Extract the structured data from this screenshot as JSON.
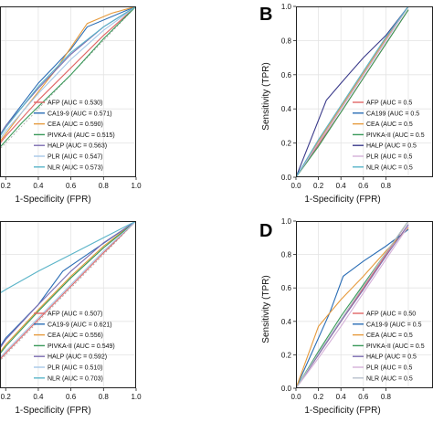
{
  "chart_data": [
    {
      "type": "line",
      "panel_label": "",
      "xlabel": "1-Specificity (FPR)",
      "ylabel": "",
      "xlim": [
        0.0,
        1.0
      ],
      "ylim": [
        0.0,
        1.0
      ],
      "x_ticks": [
        "0.2",
        "0.4",
        "0.6",
        "0.8",
        "1.0"
      ],
      "y_ticks": [],
      "grid": true,
      "legend_position": "bottom-right",
      "series": [
        {
          "name": "AFP (AUC = 0.530)",
          "color": "#e06666",
          "x": [
            0,
            0.2,
            0.4,
            0.6,
            0.8,
            1
          ],
          "y": [
            0,
            0.24,
            0.45,
            0.64,
            0.83,
            1
          ]
        },
        {
          "name": "CA19-9 (AUC = 0.571)",
          "color": "#2a6db5",
          "x": [
            0,
            0.2,
            0.4,
            0.6,
            0.7,
            1
          ],
          "y": [
            0,
            0.3,
            0.55,
            0.75,
            0.88,
            1
          ]
        },
        {
          "name": "CEA (AUC = 0.590)",
          "color": "#e69a3c",
          "x": [
            0,
            0.3,
            0.5,
            0.7,
            0.85,
            1
          ],
          "y": [
            0,
            0.38,
            0.62,
            0.9,
            0.96,
            1
          ]
        },
        {
          "name": "PIVKA-II (AUC = 0.515)",
          "color": "#3a9a5a",
          "x": [
            0,
            0.3,
            0.6,
            0.8,
            1
          ],
          "y": [
            0,
            0.32,
            0.6,
            0.81,
            1
          ]
        },
        {
          "name": "HALP (AUC = 0.563)",
          "color": "#7b6bb0",
          "x": [
            0,
            0.2,
            0.4,
            0.6,
            0.8,
            1
          ],
          "y": [
            0,
            0.3,
            0.52,
            0.72,
            0.88,
            1
          ]
        },
        {
          "name": "PLR (AUC = 0.547)",
          "color": "#a6c8e8",
          "x": [
            0,
            0.2,
            0.4,
            0.6,
            0.8,
            1
          ],
          "y": [
            0,
            0.27,
            0.49,
            0.69,
            0.86,
            1
          ]
        },
        {
          "name": "NLR (AUC = 0.573)",
          "color": "#5ab4c8",
          "x": [
            0,
            0.2,
            0.4,
            0.6,
            0.8,
            1
          ],
          "y": [
            0,
            0.29,
            0.53,
            0.73,
            0.88,
            1
          ]
        }
      ]
    },
    {
      "type": "line",
      "panel_label": "B",
      "xlabel": "1-Specificity (FPR)",
      "ylabel": "Sensitivity (TPR)",
      "xlim": [
        0.0,
        1.0
      ],
      "ylim": [
        0.0,
        1.0
      ],
      "x_ticks": [
        "0.0",
        "0.2",
        "0.4",
        "0.6",
        "0.8"
      ],
      "y_ticks": [
        "0.0",
        "0.2",
        "0.4",
        "0.6",
        "0.8",
        "1.0"
      ],
      "grid": true,
      "legend_position": "bottom-right",
      "series": [
        {
          "name": "AFP (AUC = 0.5",
          "color": "#e06666",
          "x": [
            0,
            0.2,
            0.4,
            0.6,
            0.8,
            1
          ],
          "y": [
            0,
            0.19,
            0.38,
            0.58,
            0.78,
            0.98
          ]
        },
        {
          "name": "CA199 (AUC = 0.5",
          "color": "#2a6db5",
          "x": [
            0,
            0.2,
            0.4,
            0.6,
            0.8,
            1
          ],
          "y": [
            0,
            0.2,
            0.4,
            0.6,
            0.8,
            1.0
          ]
        },
        {
          "name": "CEA (AUC = 0.5",
          "color": "#e69a3c",
          "x": [
            0,
            0.2,
            0.4,
            0.6,
            0.8,
            1
          ],
          "y": [
            0,
            0.21,
            0.41,
            0.61,
            0.81,
            1.0
          ]
        },
        {
          "name": "PIVKA-II (AUC = 0.5",
          "color": "#3a9a5a",
          "x": [
            0,
            0.2,
            0.4,
            0.6,
            0.8,
            1
          ],
          "y": [
            0,
            0.18,
            0.38,
            0.58,
            0.78,
            0.98
          ]
        },
        {
          "name": "HALP (AUC = 0.5",
          "color": "#3a3a8a",
          "x": [
            0,
            0.27,
            0.4,
            0.6,
            0.8,
            1
          ],
          "y": [
            0,
            0.45,
            0.55,
            0.7,
            0.83,
            1.0
          ]
        },
        {
          "name": "PLR (AUC = 0.5",
          "color": "#d4b0d8",
          "x": [
            0,
            0.2,
            0.4,
            0.6,
            0.8,
            1
          ],
          "y": [
            0,
            0.2,
            0.4,
            0.6,
            0.8,
            1.0
          ]
        },
        {
          "name": "NLR (AUC = 0.5",
          "color": "#5ab4c8",
          "x": [
            0,
            0.2,
            0.4,
            0.6,
            0.8,
            1
          ],
          "y": [
            0,
            0.22,
            0.42,
            0.62,
            0.82,
            1.0
          ]
        }
      ]
    },
    {
      "type": "line",
      "panel_label": "",
      "xlabel": "1-Specificity (FPR)",
      "ylabel": "",
      "xlim": [
        0.0,
        1.0
      ],
      "ylim": [
        0.0,
        1.0
      ],
      "x_ticks": [
        "0.2",
        "0.4",
        "0.6",
        "0.8",
        "1.0"
      ],
      "y_ticks": [],
      "grid": true,
      "legend_position": "bottom-right",
      "series": [
        {
          "name": "AFP (AUC = 0.507)",
          "color": "#e06666",
          "x": [
            0,
            0.2,
            0.4,
            0.6,
            0.8,
            1
          ],
          "y": [
            0,
            0.21,
            0.41,
            0.61,
            0.81,
            1
          ]
        },
        {
          "name": "CA19-9 (AUC = 0.621)",
          "color": "#2a6db5",
          "x": [
            0,
            0.2,
            0.4,
            0.55,
            0.7,
            0.85,
            1
          ],
          "y": [
            0,
            0.3,
            0.5,
            0.7,
            0.8,
            0.9,
            1
          ]
        },
        {
          "name": "CEA (AUC = 0.556)",
          "color": "#e69a3c",
          "x": [
            0,
            0.2,
            0.4,
            0.6,
            0.8,
            1
          ],
          "y": [
            0,
            0.26,
            0.47,
            0.67,
            0.85,
            1
          ]
        },
        {
          "name": "PIVKA-II (AUC = 0.549)",
          "color": "#3a9a5a",
          "x": [
            0,
            0.2,
            0.4,
            0.6,
            0.8,
            1
          ],
          "y": [
            0,
            0.25,
            0.46,
            0.66,
            0.84,
            1
          ]
        },
        {
          "name": "HALP (AUC = 0.592)",
          "color": "#7b6bb0",
          "x": [
            0,
            0.2,
            0.4,
            0.6,
            0.8,
            1
          ],
          "y": [
            0,
            0.29,
            0.5,
            0.7,
            0.87,
            1
          ]
        },
        {
          "name": "PLR (AUC = 0.510)",
          "color": "#a6c8e8",
          "x": [
            0,
            0.2,
            0.4,
            0.6,
            0.8,
            1
          ],
          "y": [
            0,
            0.22,
            0.42,
            0.62,
            0.82,
            1
          ]
        },
        {
          "name": "NLR (AUC = 0.703)",
          "color": "#5ab4c8",
          "x": [
            0,
            0.2,
            0.4,
            0.6,
            0.8,
            1
          ],
          "y": [
            0.47,
            0.59,
            0.7,
            0.8,
            0.9,
            1
          ]
        }
      ]
    },
    {
      "type": "line",
      "panel_label": "D",
      "xlabel": "1-Specificity (FPR)",
      "ylabel": "Sensitivity (TPR)",
      "xlim": [
        0.0,
        1.0
      ],
      "ylim": [
        0.0,
        1.0
      ],
      "x_ticks": [
        "0.0",
        "0.2",
        "0.4",
        "0.6",
        "0.8"
      ],
      "y_ticks": [
        "0.0",
        "0.2",
        "0.4",
        "0.6",
        "0.8",
        "1.0"
      ],
      "grid": true,
      "legend_position": "bottom-right",
      "series": [
        {
          "name": "AFP (AUC = 0.50",
          "color": "#e06666",
          "x": [
            0,
            0.2,
            0.4,
            0.6,
            0.8,
            1
          ],
          "y": [
            0,
            0.2,
            0.4,
            0.6,
            0.8,
            1.0
          ]
        },
        {
          "name": "CA19-9 (AUC = 0.5",
          "color": "#2a6db5",
          "x": [
            0,
            0.3,
            0.42,
            0.6,
            0.8,
            1
          ],
          "y": [
            0,
            0.45,
            0.67,
            0.76,
            0.85,
            0.95
          ]
        },
        {
          "name": "CEA (AUC = 0.5",
          "color": "#e69a3c",
          "x": [
            0,
            0.2,
            0.4,
            0.6,
            0.8,
            1
          ],
          "y": [
            0,
            0.37,
            0.53,
            0.67,
            0.82,
            0.96
          ]
        },
        {
          "name": "PIVKA-II (AUC = 0.5",
          "color": "#3a9a5a",
          "x": [
            0,
            0.2,
            0.4,
            0.6,
            0.8,
            1
          ],
          "y": [
            0,
            0.22,
            0.43,
            0.62,
            0.81,
            1.0
          ]
        },
        {
          "name": "HALP (AUC = 0.5",
          "color": "#7b6bb0",
          "x": [
            0,
            0.2,
            0.4,
            0.6,
            0.8,
            1
          ],
          "y": [
            0,
            0.2,
            0.4,
            0.59,
            0.79,
            0.98
          ]
        },
        {
          "name": "PLR (AUC = 0.5",
          "color": "#d4b0d8",
          "x": [
            0,
            0.2,
            0.4,
            0.6,
            0.8,
            1
          ],
          "y": [
            0,
            0.18,
            0.37,
            0.57,
            0.77,
            0.97
          ]
        },
        {
          "name": "NLR (AUC = 0.5",
          "color": "#b8c0cc",
          "x": [
            0,
            0.2,
            0.4,
            0.6,
            0.8,
            1
          ],
          "y": [
            0,
            0.21,
            0.41,
            0.61,
            0.81,
            1.0
          ]
        }
      ]
    }
  ]
}
